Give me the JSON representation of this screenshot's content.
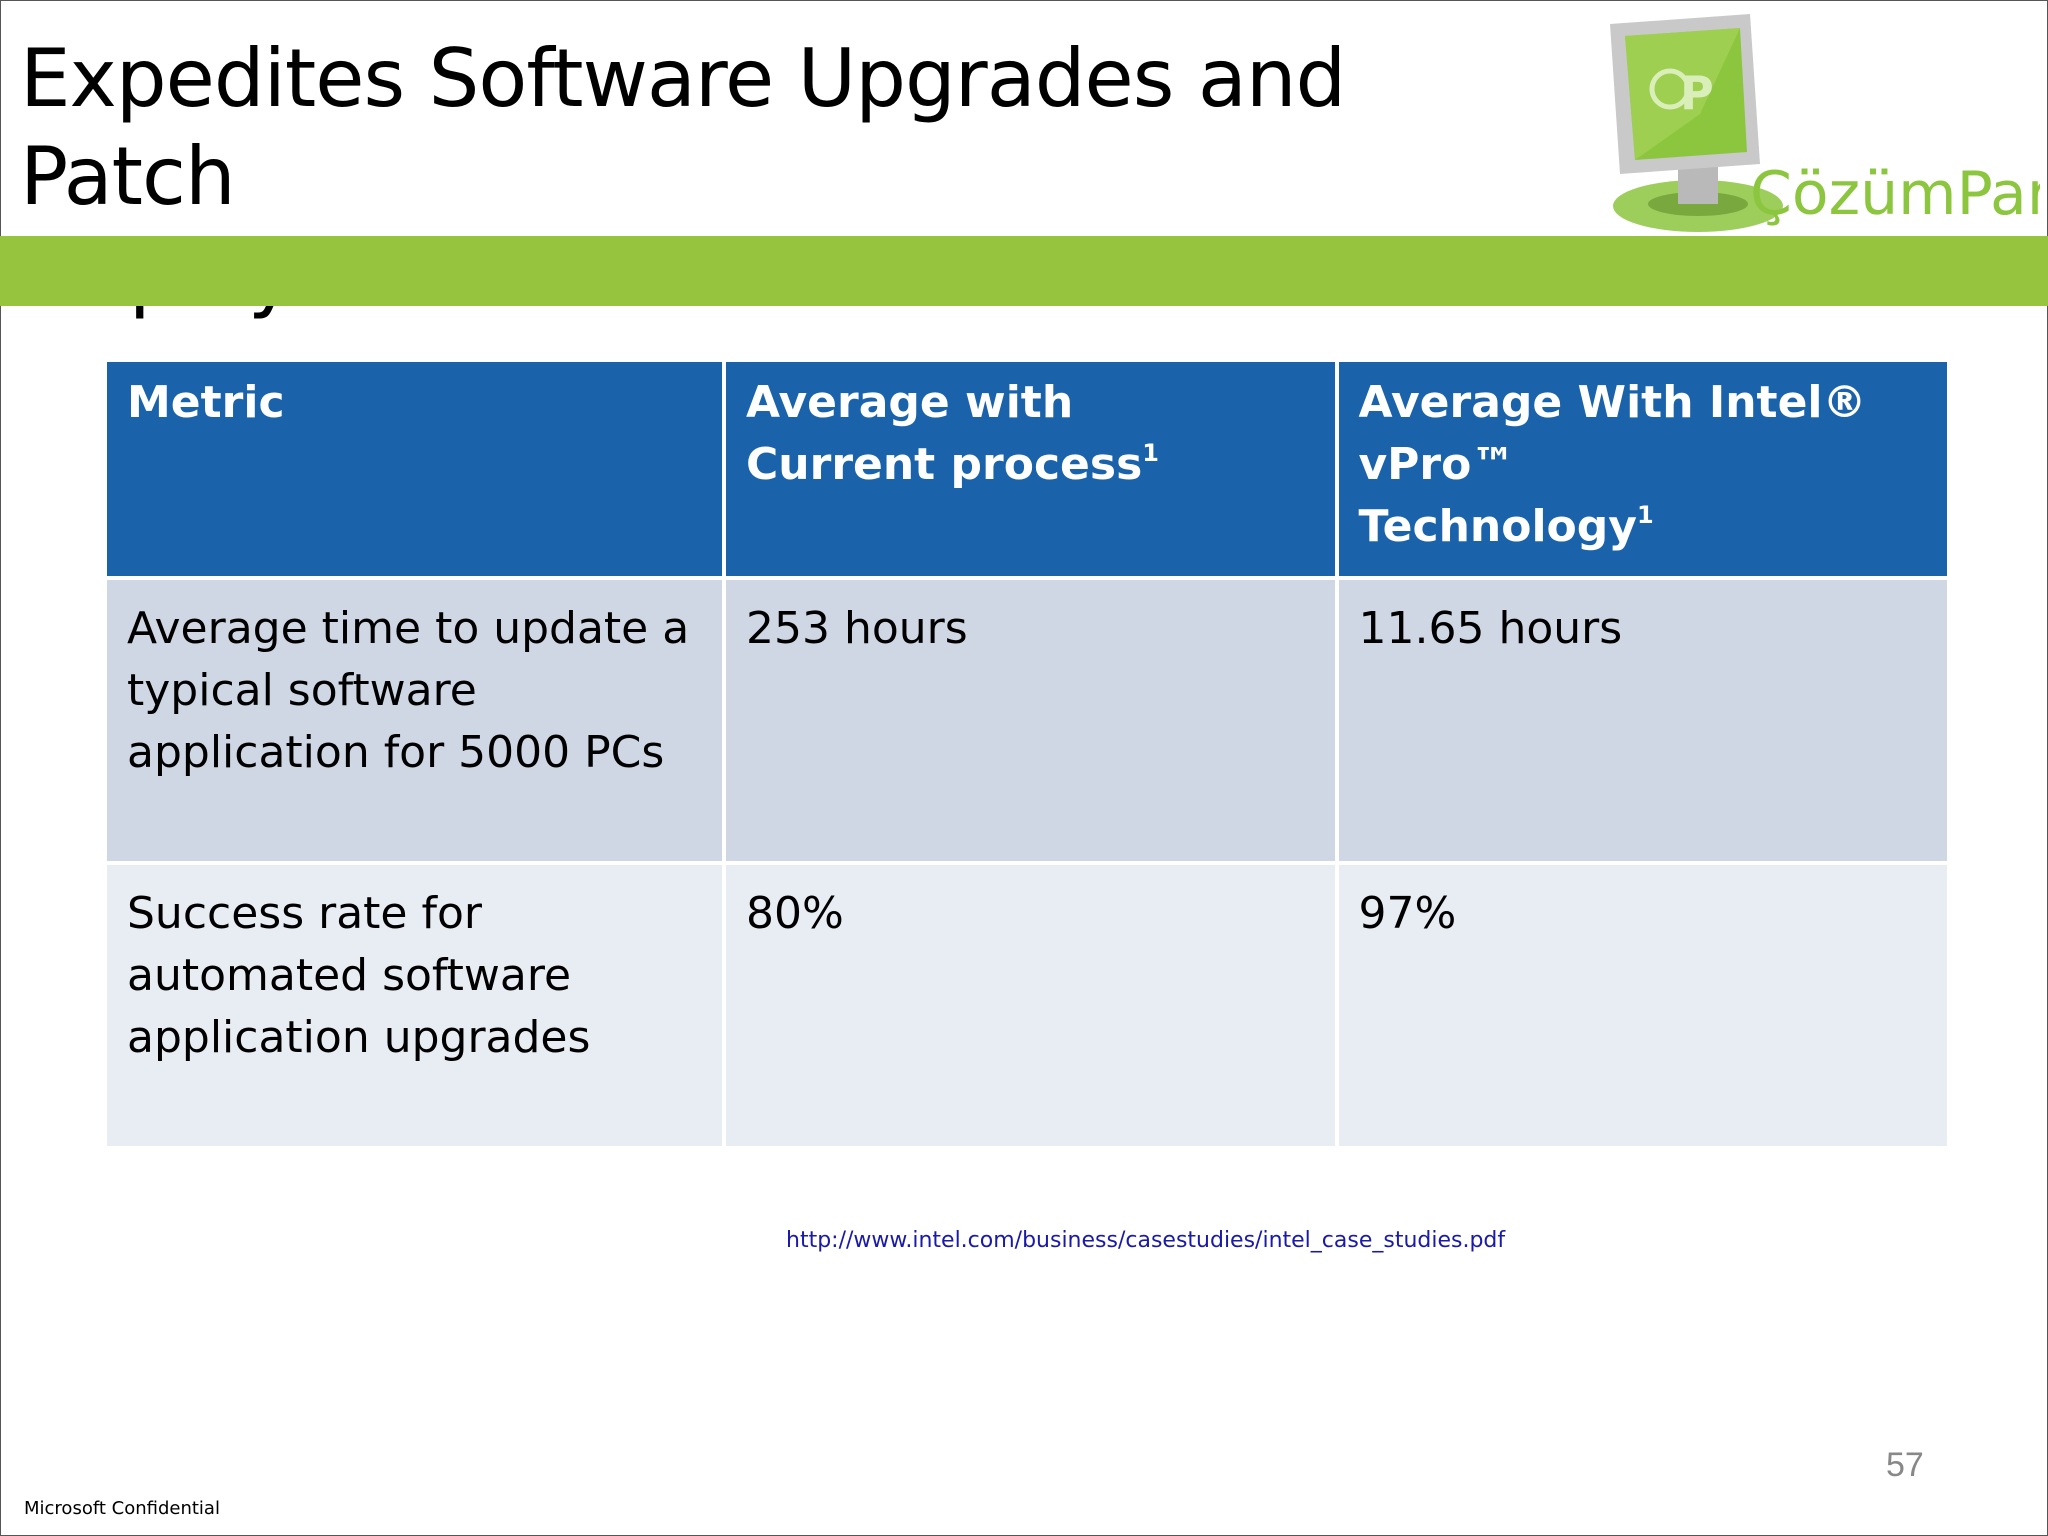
{
  "slide": {
    "title_line1": "Expedites Software Upgrades and Patch",
    "title_line2": "Deployment",
    "logo": {
      "name": "ÇözümPark",
      "icon": "monitor-logo-icon",
      "accent_color": "#8cc63f"
    },
    "accent_bar_color": "#97c43e"
  },
  "table": {
    "headers": [
      {
        "text": "Metric",
        "sup": ""
      },
      {
        "text_line1": "Average with",
        "text_line2": "Current process",
        "sup": "1"
      },
      {
        "text_line1": "Average With Intel® vPro™",
        "text_line2": "Technology",
        "sup": "1"
      }
    ],
    "rows": [
      [
        "Average time to update a typical software application for 5000 PCs",
        "253 hours",
        "11.65 hours"
      ],
      [
        "Success rate for automated software application upgrades",
        "80%",
        "97%"
      ]
    ],
    "header_color": "#1a63ab",
    "row_colors": [
      "#cfd7e5",
      "#e8ecf3"
    ]
  },
  "source_url": "http://www.intel.com/business/casestudies/intel_case_studies.pdf",
  "page_number": "57",
  "footer_text": "Microsoft Confidential"
}
